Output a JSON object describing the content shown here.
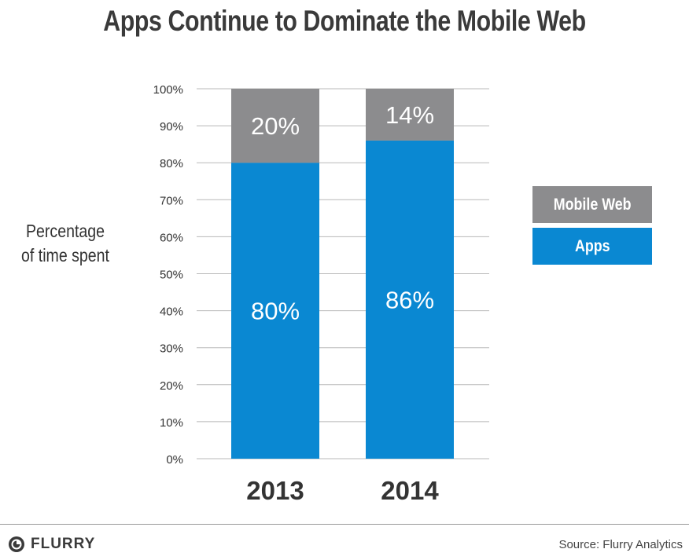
{
  "chart_data": {
    "type": "bar",
    "stacked": true,
    "title": "Apps Continue to Dominate the Mobile Web",
    "ylabel": [
      "Percentage",
      "of time spent"
    ],
    "xlabel": "",
    "categories": [
      "2013",
      "2014"
    ],
    "series": [
      {
        "name": "Apps",
        "values": [
          80,
          86
        ],
        "labels": [
          "80%",
          "86%"
        ],
        "color": "#0a88d2"
      },
      {
        "name": "Mobile Web",
        "values": [
          20,
          14
        ],
        "labels": [
          "20%",
          "14%"
        ],
        "color": "#8c8c8e"
      }
    ],
    "ylim": [
      0,
      100
    ],
    "yticks": [
      0,
      10,
      20,
      30,
      40,
      50,
      60,
      70,
      80,
      90,
      100
    ],
    "ytick_labels": [
      "0%",
      "10%",
      "20%",
      "30%",
      "40%",
      "50%",
      "60%",
      "70%",
      "80%",
      "90%",
      "100%"
    ],
    "grid": true,
    "legend": {
      "placement": "right",
      "items": [
        {
          "label": "Mobile Web",
          "color": "#8c8c8e"
        },
        {
          "label": "Apps",
          "color": "#0a88d2"
        }
      ]
    }
  },
  "footer": {
    "logo_text": "FLURRY",
    "source": "Source: Flurry Analytics"
  }
}
